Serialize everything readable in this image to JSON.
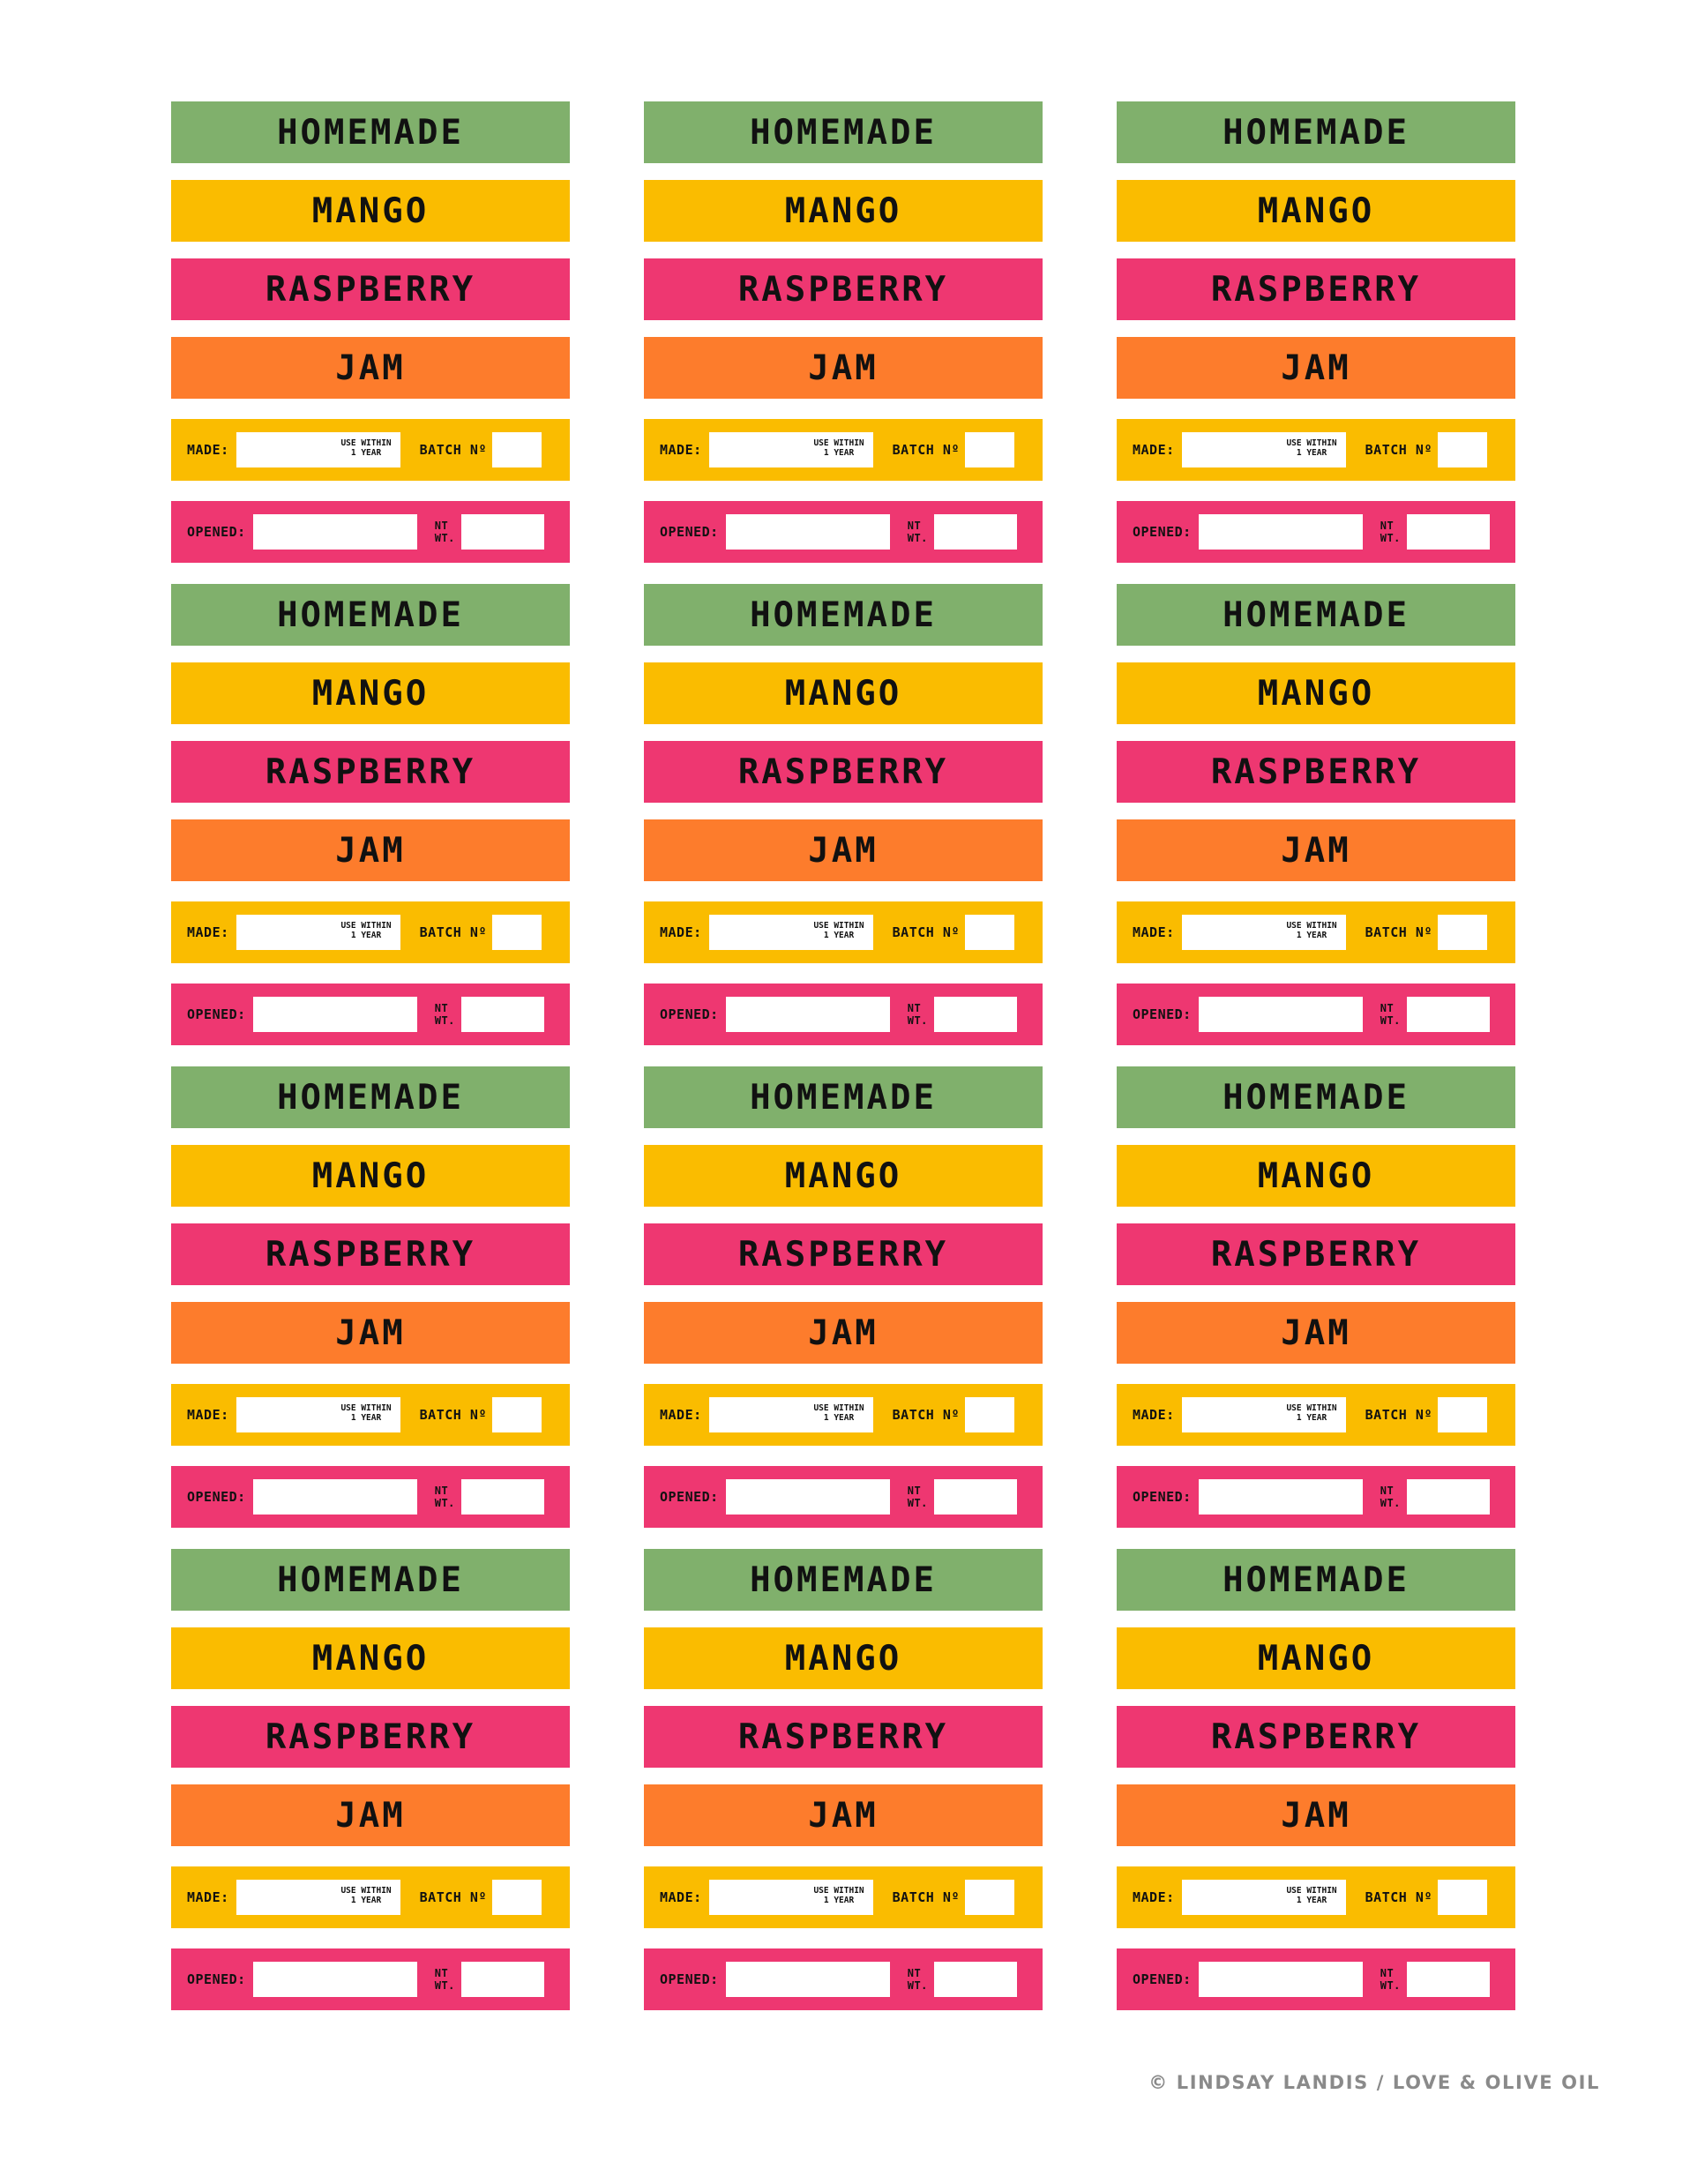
{
  "palette": {
    "green": "#80B06C",
    "yellow": "#FABC00",
    "pink": "#EE3771",
    "orange": "#FD7C2C",
    "field": "#FFFFFF",
    "text": "#111111",
    "credit": "#8A8A8A"
  },
  "label": {
    "line1": "HOMEMADE",
    "line2": "MANGO",
    "line3": "RASPBERRY",
    "line4": "JAM",
    "made_label": "MADE:",
    "use_within_line1": "USE WITHIN",
    "use_within_line2": "1 YEAR",
    "batch_label": "BATCH Nº",
    "opened_label": "OPENED:",
    "nt_label": "NT",
    "wt_label": "WT."
  },
  "sheet": {
    "columns": 3,
    "rows": 4
  },
  "credit": "© LINDSAY LANDIS / LOVE & OLIVE OIL"
}
